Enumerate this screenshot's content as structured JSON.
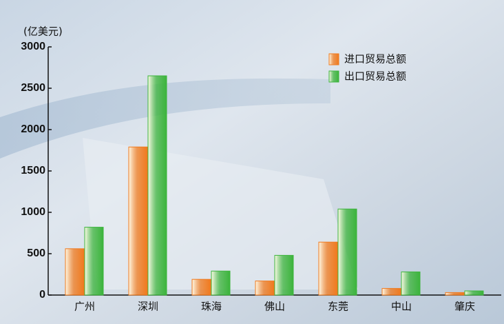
{
  "chart_data": {
    "type": "bar",
    "unit_label": "(亿美元)",
    "categories": [
      "广州",
      "深圳",
      "珠海",
      "佛山",
      "东莞",
      "中山",
      "肇庆"
    ],
    "series": [
      {
        "name": "进口贸易总额",
        "color": "#f07a1e",
        "values": [
          560,
          1790,
          190,
          170,
          640,
          80,
          30
        ]
      },
      {
        "name": "出口贸易总额",
        "color": "#3cb43c",
        "values": [
          820,
          2650,
          290,
          480,
          1040,
          280,
          50
        ]
      }
    ],
    "ylim": [
      0,
      3000
    ],
    "yticks": [
      0,
      500,
      1000,
      1500,
      2000,
      2500,
      3000
    ],
    "legend": "upper right"
  }
}
